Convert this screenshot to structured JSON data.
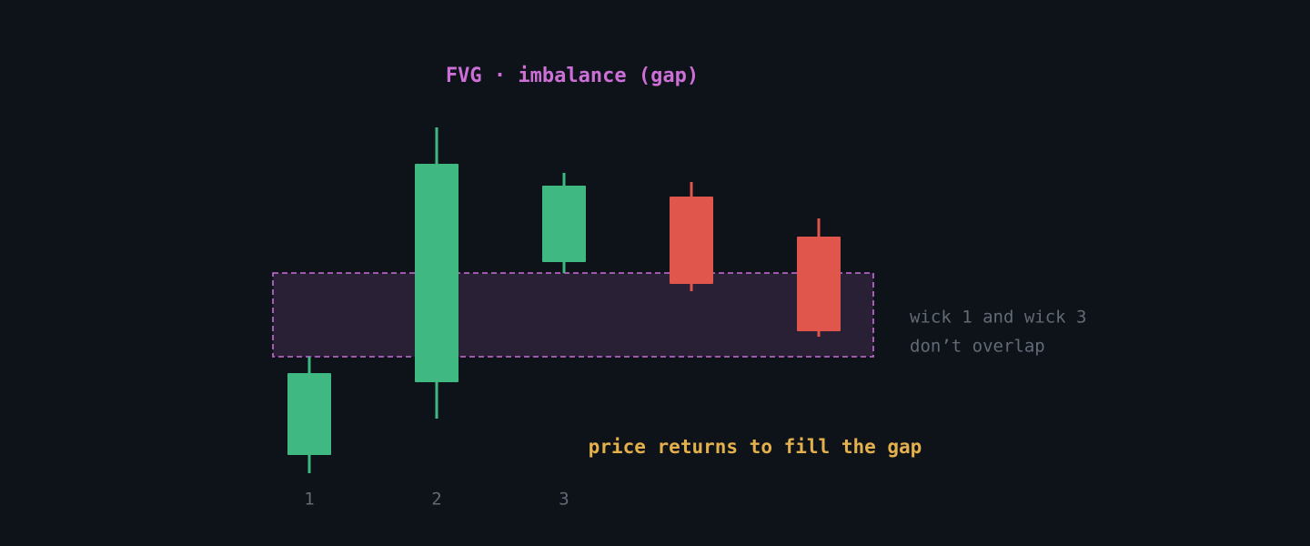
{
  "chart_data": {
    "type": "candlestick",
    "title": "FVG · imbalance (gap)",
    "categories": [
      "1",
      "2",
      "3",
      null,
      null
    ],
    "open": [
      100,
      180,
      312,
      384,
      340
    ],
    "high": [
      208,
      460,
      410,
      400,
      360
    ],
    "low": [
      80,
      140,
      300,
      280,
      230
    ],
    "close": [
      190,
      420,
      396,
      288,
      236
    ],
    "up_color": "#40b882",
    "down_color": "#e0564d",
    "zone": {
      "low": 208,
      "high": 300,
      "color": "#c96ed8"
    },
    "annotations": [
      "wick 1 and wick 3",
      "don’t overlap",
      "price returns to fill the gap"
    ],
    "ylim": [
      0,
      600
    ]
  }
}
